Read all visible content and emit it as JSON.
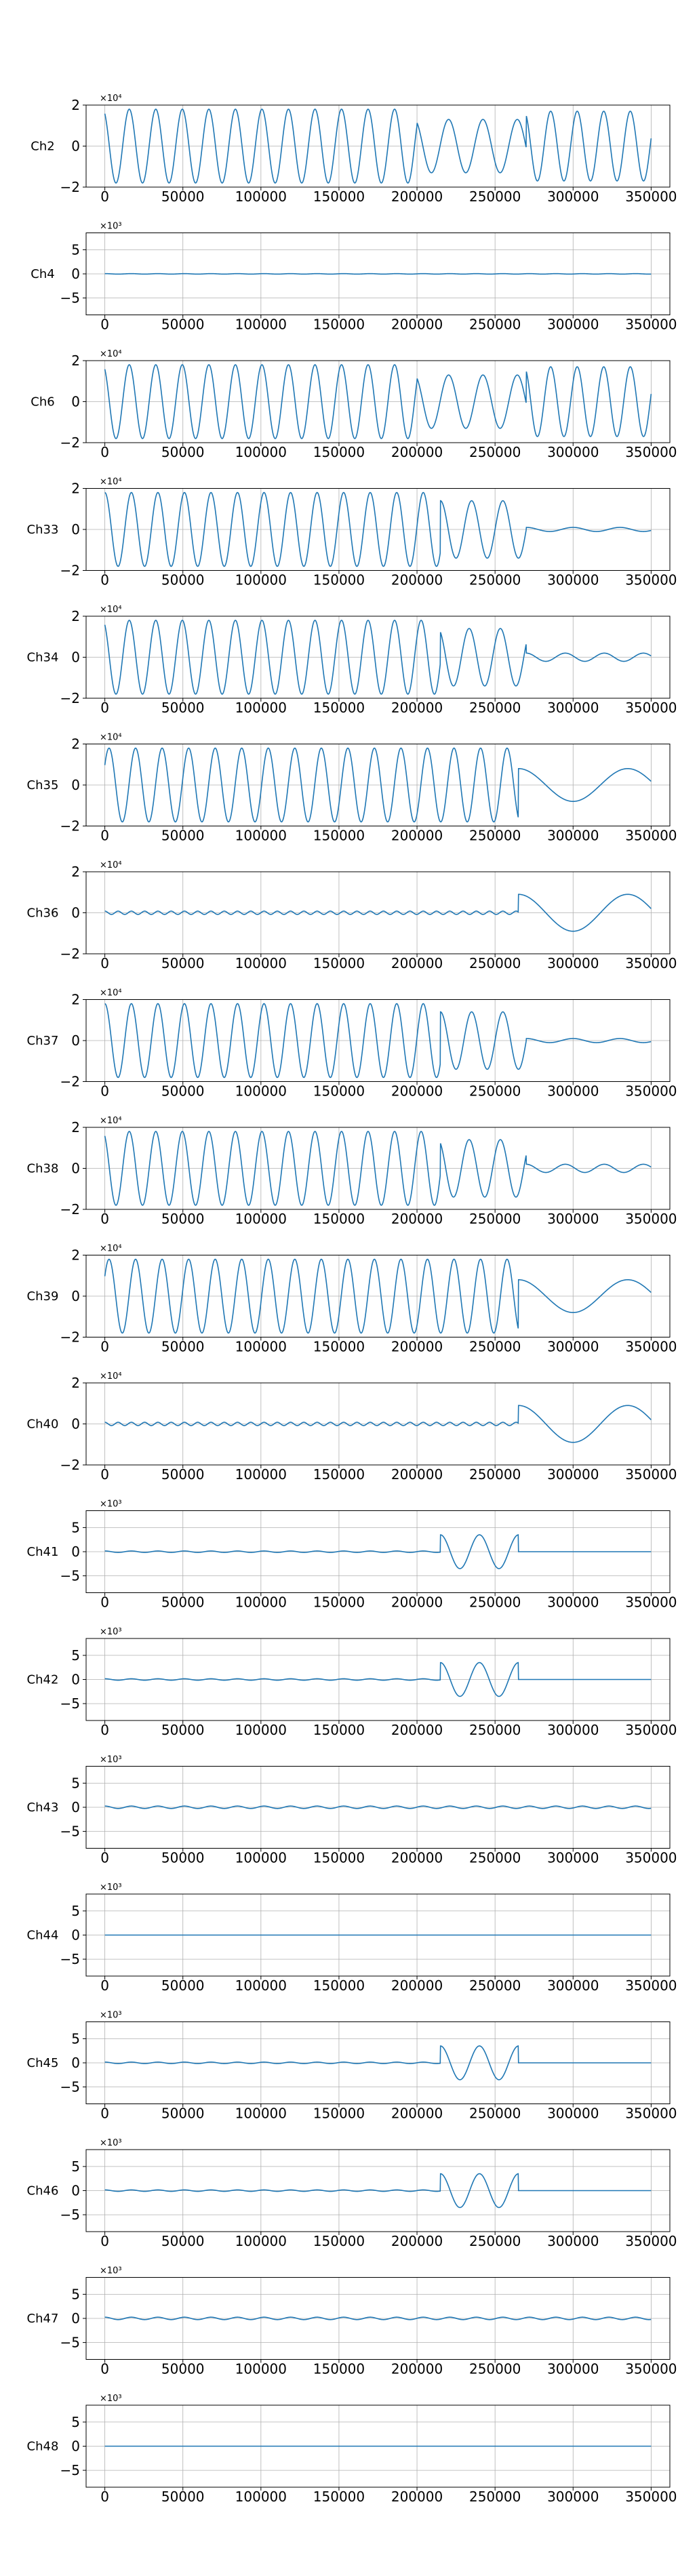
{
  "chart_data": [
    {
      "type": "line",
      "ylabel": "Ch2",
      "exponent": "×10⁴",
      "ylim": [
        -2,
        2
      ],
      "yticks": [
        -2,
        0,
        2
      ],
      "xlim": [
        -12000,
        362000
      ],
      "xticks": [
        0,
        50000,
        100000,
        150000,
        200000,
        250000,
        300000,
        350000
      ],
      "grid": true,
      "color": "#1f77b4",
      "segments": [
        {
          "x0": 0,
          "x1": 200000,
          "amp": 1.8,
          "period": 17000,
          "phase": 0.5
        },
        {
          "x0": 200000,
          "x1": 270000,
          "amp": 1.3,
          "period": 22000,
          "phase": 0.5
        },
        {
          "x0": 270000,
          "x1": 350000,
          "amp": 1.7,
          "period": 17000,
          "phase": 0.5
        }
      ]
    },
    {
      "type": "line",
      "ylabel": "Ch4",
      "exponent": "×10³",
      "ylim": [
        -8.5,
        8.5
      ],
      "yticks": [
        -5,
        0,
        5
      ],
      "xlim": [
        -12000,
        362000
      ],
      "xticks": [
        0,
        50000,
        100000,
        150000,
        200000,
        250000,
        300000,
        350000
      ],
      "grid": true,
      "color": "#1f77b4",
      "segments": [
        {
          "x0": 0,
          "x1": 350000,
          "amp": 0.05,
          "period": 17000,
          "phase": 0
        }
      ]
    },
    {
      "type": "line",
      "ylabel": "Ch6",
      "exponent": "×10⁴",
      "ylim": [
        -2,
        2
      ],
      "yticks": [
        -2,
        0,
        2
      ],
      "xlim": [
        -12000,
        362000
      ],
      "xticks": [
        0,
        50000,
        100000,
        150000,
        200000,
        250000,
        300000,
        350000
      ],
      "grid": true,
      "color": "#1f77b4",
      "segments": [
        {
          "x0": 0,
          "x1": 200000,
          "amp": 1.8,
          "period": 17000,
          "phase": 0.5
        },
        {
          "x0": 200000,
          "x1": 270000,
          "amp": 1.3,
          "period": 22000,
          "phase": 0.5
        },
        {
          "x0": 270000,
          "x1": 350000,
          "amp": 1.7,
          "period": 17000,
          "phase": 0.5
        }
      ]
    },
    {
      "type": "line",
      "ylabel": "Ch33",
      "exponent": "×10⁴",
      "ylim": [
        -2,
        2
      ],
      "yticks": [
        -2,
        0,
        2
      ],
      "xlim": [
        -12000,
        362000
      ],
      "xticks": [
        0,
        50000,
        100000,
        150000,
        200000,
        250000,
        300000,
        350000
      ],
      "grid": true,
      "color": "#1f77b4",
      "segments": [
        {
          "x0": 0,
          "x1": 215000,
          "amp": 1.8,
          "period": 17000,
          "phase": 0
        },
        {
          "x0": 215000,
          "x1": 270000,
          "amp": 1.4,
          "period": 20000,
          "phase": 0
        },
        {
          "x0": 270000,
          "x1": 350000,
          "amp": 0.1,
          "period": 30000,
          "phase": 0
        }
      ]
    },
    {
      "type": "line",
      "ylabel": "Ch34",
      "exponent": "×10⁴",
      "ylim": [
        -2,
        2
      ],
      "yticks": [
        -2,
        0,
        2
      ],
      "xlim": [
        -12000,
        362000
      ],
      "xticks": [
        0,
        50000,
        100000,
        150000,
        200000,
        250000,
        300000,
        350000
      ],
      "grid": true,
      "color": "#1f77b4",
      "segments": [
        {
          "x0": 0,
          "x1": 215000,
          "amp": 1.8,
          "period": 17000,
          "phase": 0.5
        },
        {
          "x0": 215000,
          "x1": 270000,
          "amp": 1.4,
          "period": 20000,
          "phase": 0.5
        },
        {
          "x0": 270000,
          "x1": 350000,
          "amp": 0.2,
          "period": 25000,
          "phase": 0
        }
      ]
    },
    {
      "type": "line",
      "ylabel": "Ch35",
      "exponent": "×10⁴",
      "ylim": [
        -2,
        2
      ],
      "yticks": [
        -2,
        0,
        2
      ],
      "xlim": [
        -12000,
        362000
      ],
      "xticks": [
        0,
        50000,
        100000,
        150000,
        200000,
        250000,
        300000,
        350000
      ],
      "grid": true,
      "color": "#1f77b4",
      "segments": [
        {
          "x0": 0,
          "x1": 265000,
          "amp": 1.8,
          "period": 17000,
          "phase": -1
        },
        {
          "x0": 265000,
          "x1": 350000,
          "amp": 0.8,
          "period": 70000,
          "phase": 0
        }
      ]
    },
    {
      "type": "line",
      "ylabel": "Ch36",
      "exponent": "×10⁴",
      "ylim": [
        -2,
        2
      ],
      "yticks": [
        -2,
        0,
        2
      ],
      "xlim": [
        -12000,
        362000
      ],
      "xticks": [
        0,
        50000,
        100000,
        150000,
        200000,
        250000,
        300000,
        350000
      ],
      "grid": true,
      "color": "#1f77b4",
      "segments": [
        {
          "x0": 0,
          "x1": 265000,
          "amp": 0.08,
          "period": 8500,
          "phase": 0
        },
        {
          "x0": 265000,
          "x1": 350000,
          "amp": 0.9,
          "period": 70000,
          "phase": 0
        }
      ]
    },
    {
      "type": "line",
      "ylabel": "Ch37",
      "exponent": "×10⁴",
      "ylim": [
        -2,
        2
      ],
      "yticks": [
        -2,
        0,
        2
      ],
      "xlim": [
        -12000,
        362000
      ],
      "xticks": [
        0,
        50000,
        100000,
        150000,
        200000,
        250000,
        300000,
        350000
      ],
      "grid": true,
      "color": "#1f77b4",
      "segments": [
        {
          "x0": 0,
          "x1": 215000,
          "amp": 1.8,
          "period": 17000,
          "phase": 0
        },
        {
          "x0": 215000,
          "x1": 270000,
          "amp": 1.4,
          "period": 20000,
          "phase": 0
        },
        {
          "x0": 270000,
          "x1": 350000,
          "amp": 0.1,
          "period": 30000,
          "phase": 0
        }
      ]
    },
    {
      "type": "line",
      "ylabel": "Ch38",
      "exponent": "×10⁴",
      "ylim": [
        -2,
        2
      ],
      "yticks": [
        -2,
        0,
        2
      ],
      "xlim": [
        -12000,
        362000
      ],
      "xticks": [
        0,
        50000,
        100000,
        150000,
        200000,
        250000,
        300000,
        350000
      ],
      "grid": true,
      "color": "#1f77b4",
      "segments": [
        {
          "x0": 0,
          "x1": 215000,
          "amp": 1.8,
          "period": 17000,
          "phase": 0.5
        },
        {
          "x0": 215000,
          "x1": 270000,
          "amp": 1.4,
          "period": 20000,
          "phase": 0.5
        },
        {
          "x0": 270000,
          "x1": 350000,
          "amp": 0.2,
          "period": 25000,
          "phase": 0
        }
      ]
    },
    {
      "type": "line",
      "ylabel": "Ch39",
      "exponent": "×10⁴",
      "ylim": [
        -2,
        2
      ],
      "yticks": [
        -2,
        0,
        2
      ],
      "xlim": [
        -12000,
        362000
      ],
      "xticks": [
        0,
        50000,
        100000,
        150000,
        200000,
        250000,
        300000,
        350000
      ],
      "grid": true,
      "color": "#1f77b4",
      "segments": [
        {
          "x0": 0,
          "x1": 265000,
          "amp": 1.8,
          "period": 17000,
          "phase": -1
        },
        {
          "x0": 265000,
          "x1": 350000,
          "amp": 0.8,
          "period": 70000,
          "phase": 0
        }
      ]
    },
    {
      "type": "line",
      "ylabel": "Ch40",
      "exponent": "×10⁴",
      "ylim": [
        -2,
        2
      ],
      "yticks": [
        -2,
        0,
        2
      ],
      "xlim": [
        -12000,
        362000
      ],
      "xticks": [
        0,
        50000,
        100000,
        150000,
        200000,
        250000,
        300000,
        350000
      ],
      "grid": true,
      "color": "#1f77b4",
      "segments": [
        {
          "x0": 0,
          "x1": 265000,
          "amp": 0.08,
          "period": 8500,
          "phase": 0
        },
        {
          "x0": 265000,
          "x1": 350000,
          "amp": 0.9,
          "period": 70000,
          "phase": 0
        }
      ]
    },
    {
      "type": "line",
      "ylabel": "Ch41",
      "exponent": "×10³",
      "ylim": [
        -8.5,
        8.5
      ],
      "yticks": [
        -5,
        0,
        5
      ],
      "xlim": [
        -12000,
        362000
      ],
      "xticks": [
        0,
        50000,
        100000,
        150000,
        200000,
        250000,
        300000,
        350000
      ],
      "grid": true,
      "color": "#1f77b4",
      "segments": [
        {
          "x0": 0,
          "x1": 215000,
          "amp": 0.15,
          "period": 17000,
          "phase": 0
        },
        {
          "x0": 215000,
          "x1": 265000,
          "amp": 3.5,
          "period": 25000,
          "phase": 0
        },
        {
          "x0": 265000,
          "x1": 350000,
          "amp": 0,
          "period": 17000,
          "phase": 0
        }
      ]
    },
    {
      "type": "line",
      "ylabel": "Ch42",
      "exponent": "×10³",
      "ylim": [
        -8.5,
        8.5
      ],
      "yticks": [
        -5,
        0,
        5
      ],
      "xlim": [
        -12000,
        362000
      ],
      "xticks": [
        0,
        50000,
        100000,
        150000,
        200000,
        250000,
        300000,
        350000
      ],
      "grid": true,
      "color": "#1f77b4",
      "segments": [
        {
          "x0": 0,
          "x1": 215000,
          "amp": 0.15,
          "period": 17000,
          "phase": 0
        },
        {
          "x0": 215000,
          "x1": 265000,
          "amp": 3.5,
          "period": 25000,
          "phase": 0
        },
        {
          "x0": 265000,
          "x1": 350000,
          "amp": 0,
          "period": 17000,
          "phase": 0
        }
      ]
    },
    {
      "type": "line",
      "ylabel": "Ch43",
      "exponent": "×10³",
      "ylim": [
        -8.5,
        8.5
      ],
      "yticks": [
        -5,
        0,
        5
      ],
      "xlim": [
        -12000,
        362000
      ],
      "xticks": [
        0,
        50000,
        100000,
        150000,
        200000,
        250000,
        300000,
        350000
      ],
      "grid": true,
      "color": "#1f77b4",
      "segments": [
        {
          "x0": 0,
          "x1": 350000,
          "amp": 0.25,
          "period": 17000,
          "phase": 0
        }
      ]
    },
    {
      "type": "line",
      "ylabel": "Ch44",
      "exponent": "×10³",
      "ylim": [
        -8.5,
        8.5
      ],
      "yticks": [
        -5,
        0,
        5
      ],
      "xlim": [
        -12000,
        362000
      ],
      "xticks": [
        0,
        50000,
        100000,
        150000,
        200000,
        250000,
        300000,
        350000
      ],
      "grid": true,
      "color": "#1f77b4",
      "segments": [
        {
          "x0": 0,
          "x1": 350000,
          "amp": 0,
          "period": 17000,
          "phase": 0
        }
      ]
    },
    {
      "type": "line",
      "ylabel": "Ch45",
      "exponent": "×10³",
      "ylim": [
        -8.5,
        8.5
      ],
      "yticks": [
        -5,
        0,
        5
      ],
      "xlim": [
        -12000,
        362000
      ],
      "xticks": [
        0,
        50000,
        100000,
        150000,
        200000,
        250000,
        300000,
        350000
      ],
      "grid": true,
      "color": "#1f77b4",
      "segments": [
        {
          "x0": 0,
          "x1": 215000,
          "amp": 0.15,
          "period": 17000,
          "phase": 0
        },
        {
          "x0": 215000,
          "x1": 265000,
          "amp": 3.5,
          "period": 25000,
          "phase": 0
        },
        {
          "x0": 265000,
          "x1": 350000,
          "amp": 0,
          "period": 17000,
          "phase": 0
        }
      ]
    },
    {
      "type": "line",
      "ylabel": "Ch46",
      "exponent": "×10³",
      "ylim": [
        -8.5,
        8.5
      ],
      "yticks": [
        -5,
        0,
        5
      ],
      "xlim": [
        -12000,
        362000
      ],
      "xticks": [
        0,
        50000,
        100000,
        150000,
        200000,
        250000,
        300000,
        350000
      ],
      "grid": true,
      "color": "#1f77b4",
      "segments": [
        {
          "x0": 0,
          "x1": 215000,
          "amp": 0.15,
          "period": 17000,
          "phase": 0
        },
        {
          "x0": 215000,
          "x1": 265000,
          "amp": 3.5,
          "period": 25000,
          "phase": 0
        },
        {
          "x0": 265000,
          "x1": 350000,
          "amp": 0,
          "period": 17000,
          "phase": 0
        }
      ]
    },
    {
      "type": "line",
      "ylabel": "Ch47",
      "exponent": "×10³",
      "ylim": [
        -8.5,
        8.5
      ],
      "yticks": [
        -5,
        0,
        5
      ],
      "xlim": [
        -12000,
        362000
      ],
      "xticks": [
        0,
        50000,
        100000,
        150000,
        200000,
        250000,
        300000,
        350000
      ],
      "grid": true,
      "color": "#1f77b4",
      "segments": [
        {
          "x0": 0,
          "x1": 350000,
          "amp": 0.25,
          "period": 17000,
          "phase": 0
        }
      ]
    },
    {
      "type": "line",
      "ylabel": "Ch48",
      "exponent": "×10³",
      "ylim": [
        -8.5,
        8.5
      ],
      "yticks": [
        -5,
        0,
        5
      ],
      "xlim": [
        -12000,
        362000
      ],
      "xticks": [
        0,
        50000,
        100000,
        150000,
        200000,
        250000,
        300000,
        350000
      ],
      "grid": true,
      "color": "#1f77b4",
      "segments": [
        {
          "x0": 0,
          "x1": 350000,
          "amp": 0,
          "period": 17000,
          "phase": 0
        }
      ]
    }
  ]
}
